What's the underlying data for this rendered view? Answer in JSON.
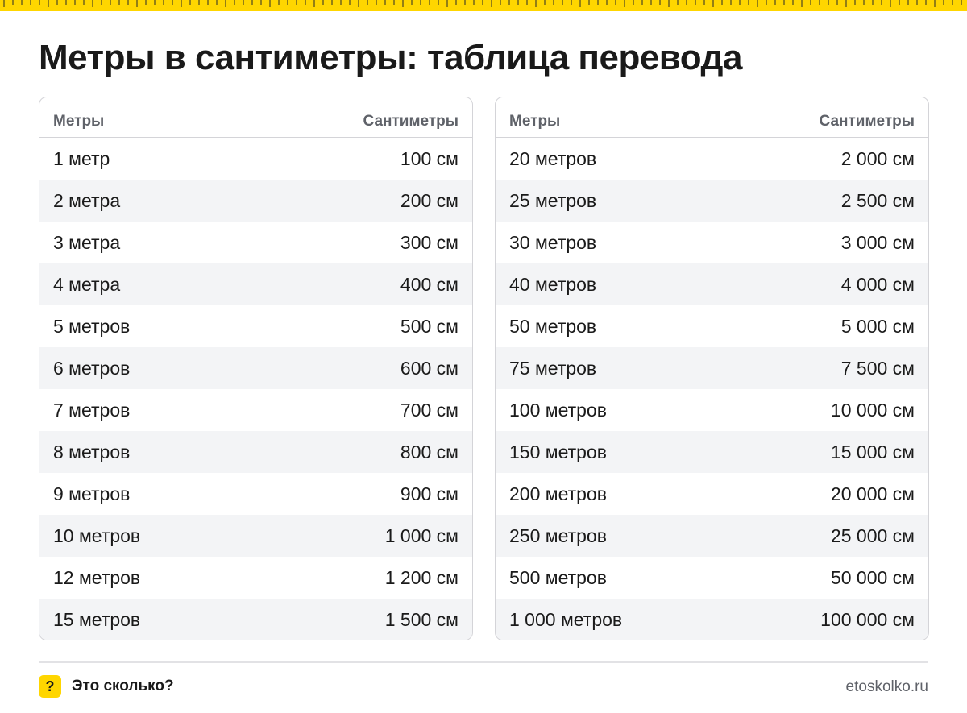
{
  "title": "Метры в сантиметры: таблица перевода",
  "colors": {
    "accent": "#ffd600",
    "header_text": "#5f6269",
    "stripe": "#f3f4f6",
    "border": "#d4d4d8"
  },
  "tables": [
    {
      "header": {
        "meters": "Метры",
        "centimeters": "Сантиметры"
      },
      "rows": [
        {
          "meters": "1 метр",
          "centimeters": "100 см"
        },
        {
          "meters": "2 метра",
          "centimeters": "200 см"
        },
        {
          "meters": "3 метра",
          "centimeters": "300 см"
        },
        {
          "meters": "4 метра",
          "centimeters": "400 см"
        },
        {
          "meters": "5 метров",
          "centimeters": "500 см"
        },
        {
          "meters": "6 метров",
          "centimeters": "600 см"
        },
        {
          "meters": "7 метров",
          "centimeters": "700 см"
        },
        {
          "meters": "8 метров",
          "centimeters": "800 см"
        },
        {
          "meters": "9 метров",
          "centimeters": "900 см"
        },
        {
          "meters": "10 метров",
          "centimeters": "1 000 см"
        },
        {
          "meters": "12 метров",
          "centimeters": "1 200 см"
        },
        {
          "meters": "15 метров",
          "centimeters": "1 500 см"
        }
      ]
    },
    {
      "header": {
        "meters": "Метры",
        "centimeters": "Сантиметры"
      },
      "rows": [
        {
          "meters": "20 метров",
          "centimeters": "2 000 см"
        },
        {
          "meters": "25 метров",
          "centimeters": "2 500 см"
        },
        {
          "meters": "30 метров",
          "centimeters": "3 000 см"
        },
        {
          "meters": "40 метров",
          "centimeters": "4 000 см"
        },
        {
          "meters": "50 метров",
          "centimeters": "5 000 см"
        },
        {
          "meters": "75 метров",
          "centimeters": "7 500 см"
        },
        {
          "meters": "100 метров",
          "centimeters": "10 000 см"
        },
        {
          "meters": "150 метров",
          "centimeters": "15 000 см"
        },
        {
          "meters": "200 метров",
          "centimeters": "20 000 см"
        },
        {
          "meters": "250 метров",
          "centimeters": "25 000 см"
        },
        {
          "meters": "500 метров",
          "centimeters": "50 000 см"
        },
        {
          "meters": "1 000 метров",
          "centimeters": "100 000 см"
        }
      ]
    }
  ],
  "footer": {
    "brand_icon": "?",
    "brand_name": "Это сколько?",
    "site": "etoskolko.ru"
  }
}
